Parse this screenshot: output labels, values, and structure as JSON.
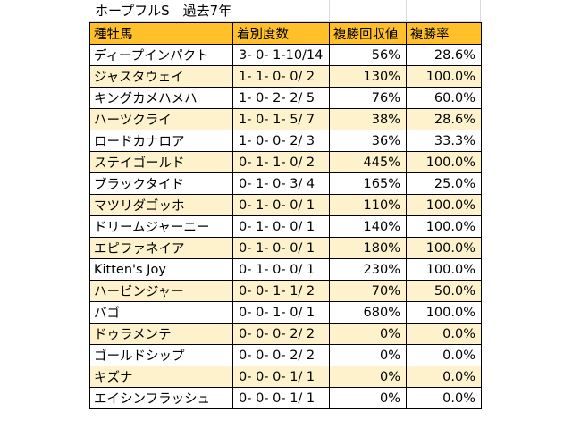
{
  "title": "ホープフルS　過去7年",
  "columns": [
    "種牡馬",
    "着別度数",
    "複勝回収値",
    "複勝率"
  ],
  "rows": [
    {
      "sire": "ディープインパクト",
      "record": "3- 0- 1-10/14",
      "return": "56%",
      "rate": "28.6%"
    },
    {
      "sire": "ジャスタウェイ",
      "record": "1- 1- 0- 0/ 2",
      "return": "130%",
      "rate": "100.0%"
    },
    {
      "sire": "キングカメハメハ",
      "record": "1- 0- 2- 2/ 5",
      "return": "76%",
      "rate": "60.0%"
    },
    {
      "sire": "ハーツクライ",
      "record": "1- 0- 1- 5/ 7",
      "return": "38%",
      "rate": "28.6%"
    },
    {
      "sire": "ロードカナロア",
      "record": "1- 0- 0- 2/ 3",
      "return": "36%",
      "rate": "33.3%"
    },
    {
      "sire": "ステイゴールド",
      "record": "0- 1- 1- 0/ 2",
      "return": "445%",
      "rate": "100.0%"
    },
    {
      "sire": "ブラックタイド",
      "record": "0- 1- 0- 3/ 4",
      "return": "165%",
      "rate": "25.0%"
    },
    {
      "sire": "マツリダゴッホ",
      "record": "0- 1- 0- 0/ 1",
      "return": "110%",
      "rate": "100.0%"
    },
    {
      "sire": "ドリームジャーニー",
      "record": "0- 1- 0- 0/ 1",
      "return": "140%",
      "rate": "100.0%"
    },
    {
      "sire": "エピファネイア",
      "record": "0- 1- 0- 0/ 1",
      "return": "180%",
      "rate": "100.0%"
    },
    {
      "sire": "Kitten's Joy",
      "record": "0- 1- 0- 0/ 1",
      "return": "230%",
      "rate": "100.0%"
    },
    {
      "sire": "ハービンジャー",
      "record": "0- 0- 1- 1/ 2",
      "return": "70%",
      "rate": "50.0%"
    },
    {
      "sire": "バゴ",
      "record": "0- 0- 1- 0/ 1",
      "return": "680%",
      "rate": "100.0%"
    },
    {
      "sire": "ドゥラメンテ",
      "record": "0- 0- 0- 2/ 2",
      "return": "0%",
      "rate": "0.0%"
    },
    {
      "sire": "ゴールドシップ",
      "record": "0- 0- 0- 2/ 2",
      "return": "0%",
      "rate": "0.0%"
    },
    {
      "sire": "キズナ",
      "record": "0- 0- 0- 1/ 1",
      "return": "0%",
      "rate": "0.0%"
    },
    {
      "sire": "エイシンフラッシュ",
      "record": "0- 0- 0- 1/ 1",
      "return": "0%",
      "rate": "0.0%"
    }
  ],
  "colors": {
    "header_bg": "#ffc02a",
    "alt_row_bg": "#fdf2cc",
    "row_bg": "#ffffff",
    "border": "#000000"
  }
}
